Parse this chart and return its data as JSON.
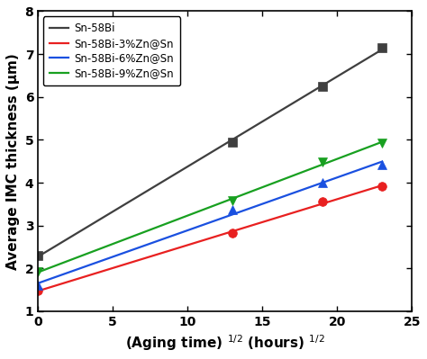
{
  "series": [
    {
      "label": "Sn-58Bi",
      "color": "#3f3f3f",
      "marker": "s",
      "x": [
        0,
        13,
        19,
        23
      ],
      "y": [
        2.3,
        4.95,
        6.25,
        7.15
      ]
    },
    {
      "label": "Sn-58Bi-3%Zn@Sn",
      "color": "#e82020",
      "marker": "o",
      "x": [
        0,
        13,
        19,
        23
      ],
      "y": [
        1.48,
        2.83,
        3.55,
        3.92
      ]
    },
    {
      "label": "Sn-58Bi-6%Zn@Sn",
      "color": "#1a50e0",
      "marker": "^",
      "x": [
        0,
        13,
        19,
        23
      ],
      "y": [
        1.6,
        3.38,
        4.0,
        4.42
      ]
    },
    {
      "label": "Sn-58Bi-9%Zn@Sn",
      "color": "#18a020",
      "marker": "v",
      "x": [
        0,
        13,
        19,
        23
      ],
      "y": [
        1.92,
        3.58,
        4.48,
        4.93
      ]
    }
  ],
  "xlabel": "(Aging time) $^{1/2}$ (hours) $^{1/2}$",
  "ylabel": "Average IMC thickness (μm)",
  "xlim": [
    0,
    25
  ],
  "ylim": [
    1,
    8
  ],
  "yticks": [
    1,
    2,
    3,
    4,
    5,
    6,
    7,
    8
  ],
  "xticks": [
    0,
    5,
    10,
    15,
    20,
    25
  ],
  "legend_fontsize": 8.5,
  "axis_fontsize": 11,
  "tick_fontsize": 10,
  "marker_size": 7,
  "linewidth": 1.6,
  "background_color": "#ffffff"
}
